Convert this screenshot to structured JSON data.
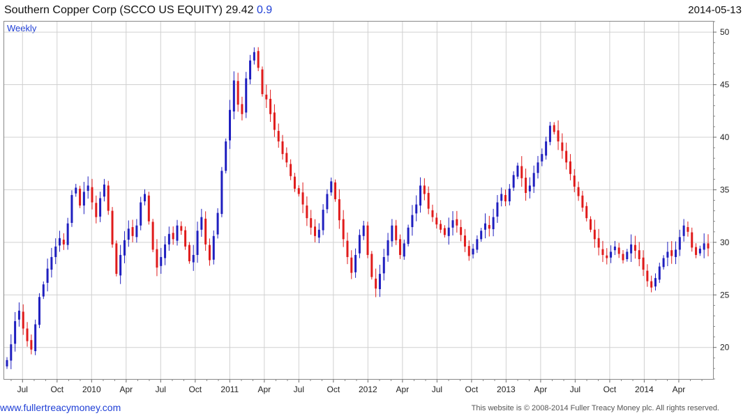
{
  "header": {
    "title": "Southern Copper Corp (SCCO US EQUITY)",
    "price": "29.42",
    "change": "0.9",
    "date": "2014-05-13"
  },
  "footer": {
    "site": "www.fullertreacymoney.com",
    "copyright": "This website is © 2008-2014 Fuller Treacy Money plc. All rights reserved."
  },
  "colors": {
    "up": "#1f1fbf",
    "down": "#e01b1b",
    "grid": "#d0d0d0"
  },
  "chart_data": {
    "type": "candlestick",
    "timeframe_label": "Weekly",
    "ylim": [
      17,
      51
    ],
    "yticks": [
      20,
      25,
      30,
      35,
      40,
      45,
      50
    ],
    "xtick_labels": [
      "Jul",
      "Oct",
      "2010",
      "Apr",
      "Jul",
      "Oct",
      "2011",
      "Apr",
      "Jul",
      "Oct",
      "2012",
      "Apr",
      "Jul",
      "Oct",
      "2013",
      "Apr",
      "Jul",
      "Oct",
      "2014",
      "Apr"
    ],
    "grid": true,
    "closes": [
      18.8,
      20.3,
      22.5,
      23.5,
      21.8,
      20.6,
      19.8,
      22.2,
      24.8,
      26.0,
      27.5,
      28.6,
      29.6,
      30.4,
      29.8,
      31.8,
      34.5,
      35.2,
      33.5,
      34.8,
      35.4,
      33.8,
      32.4,
      34.2,
      35.5,
      33.0,
      29.8,
      27.0,
      28.8,
      30.2,
      31.3,
      30.6,
      31.6,
      33.8,
      34.6,
      32.0,
      29.3,
      27.6,
      28.6,
      29.8,
      30.8,
      30.3,
      31.6,
      31.1,
      29.6,
      28.2,
      28.8,
      31.1,
      32.4,
      29.8,
      28.3,
      30.6,
      32.8,
      36.8,
      39.6,
      42.6,
      45.4,
      43.1,
      42.2,
      45.6,
      47.3,
      48.1,
      46.6,
      44.1,
      43.6,
      42.2,
      40.7,
      39.6,
      38.4,
      37.6,
      36.3,
      35.1,
      34.6,
      33.6,
      32.3,
      31.4,
      30.6,
      31.2,
      33.1,
      34.6,
      35.8,
      34.1,
      32.1,
      30.3,
      28.6,
      27.1,
      28.8,
      30.7,
      31.6,
      28.8,
      26.7,
      25.6,
      27.0,
      28.6,
      30.2,
      31.6,
      30.2,
      28.8,
      29.9,
      31.4,
      32.6,
      33.6,
      35.4,
      34.6,
      33.2,
      32.4,
      31.7,
      31.2,
      30.7,
      31.4,
      32.1,
      31.6,
      30.7,
      29.6,
      28.7,
      29.4,
      30.3,
      31.1,
      31.8,
      31.3,
      32.4,
      33.8,
      34.6,
      33.9,
      35.1,
      36.4,
      37.3,
      36.1,
      34.7,
      35.4,
      36.6,
      37.6,
      38.4,
      39.6,
      41.1,
      40.5,
      39.6,
      38.7,
      37.6,
      36.5,
      35.3,
      34.4,
      33.3,
      32.3,
      31.2,
      30.3,
      29.5,
      28.8,
      28.5,
      29.1,
      29.6,
      28.9,
      28.3,
      29.1,
      29.8,
      29.2,
      28.4,
      27.4,
      26.3,
      25.7,
      26.6,
      27.7,
      28.5,
      29.1,
      28.7,
      29.3,
      30.5,
      31.6,
      31.0,
      29.5,
      28.8,
      29.4,
      29.9,
      29.42
    ]
  }
}
